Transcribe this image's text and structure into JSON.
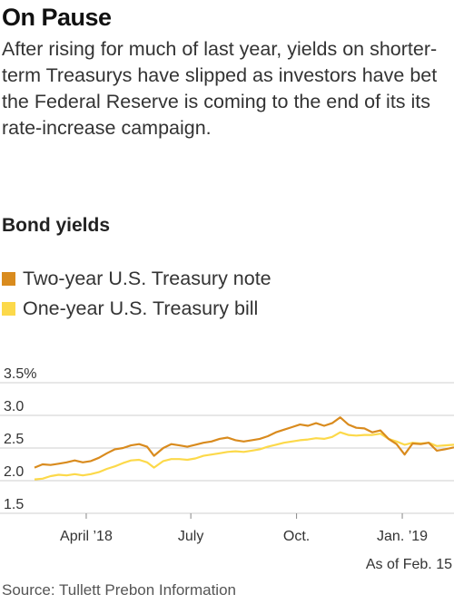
{
  "title": "On Pause",
  "subtitle": "After rising for much of last year, yields on shorter-term Treasurys have slipped as investors have bet the Federal Reserve is coming to the end of its its rate-increase campaign.",
  "chart_label": "Bond yields",
  "note": "As of Feb. 15",
  "source": "Source: Tullett Prebon Information",
  "colors": {
    "two_year": "#d98b1e",
    "one_year": "#fcd94a",
    "grid": "#cfcfcf"
  },
  "chart_data": {
    "type": "line",
    "title": "Bond yields",
    "ylim": [
      1.5,
      3.5
    ],
    "xlim": [
      "2018-02-15",
      "2019-02-15"
    ],
    "y_ticks": [
      {
        "value": 3.5,
        "label": "3.5%"
      },
      {
        "value": 3.0,
        "label": "3.0"
      },
      {
        "value": 2.5,
        "label": "2.5"
      },
      {
        "value": 2.0,
        "label": "2.0"
      },
      {
        "value": 1.5,
        "label": "1.5"
      }
    ],
    "x_ticks": [
      {
        "value": "2018-04-01",
        "label": "April ’18"
      },
      {
        "value": "2018-07-01",
        "label": "July"
      },
      {
        "value": "2018-10-01",
        "label": "Oct."
      },
      {
        "value": "2019-01-01",
        "label": "Jan. ’19"
      }
    ],
    "grid": true,
    "legend_position": "top-left",
    "series": [
      {
        "name": "Two-year U.S. Treasury note",
        "color": "#d98b1e",
        "points": [
          [
            "2018-02-15",
            2.2
          ],
          [
            "2018-02-22",
            2.25
          ],
          [
            "2018-03-01",
            2.24
          ],
          [
            "2018-03-08",
            2.26
          ],
          [
            "2018-03-15",
            2.28
          ],
          [
            "2018-03-22",
            2.31
          ],
          [
            "2018-03-29",
            2.28
          ],
          [
            "2018-04-05",
            2.3
          ],
          [
            "2018-04-12",
            2.35
          ],
          [
            "2018-04-19",
            2.42
          ],
          [
            "2018-04-26",
            2.48
          ],
          [
            "2018-05-03",
            2.5
          ],
          [
            "2018-05-10",
            2.54
          ],
          [
            "2018-05-17",
            2.56
          ],
          [
            "2018-05-24",
            2.52
          ],
          [
            "2018-05-30",
            2.38
          ],
          [
            "2018-06-07",
            2.5
          ],
          [
            "2018-06-14",
            2.56
          ],
          [
            "2018-06-21",
            2.54
          ],
          [
            "2018-06-28",
            2.52
          ],
          [
            "2018-07-05",
            2.55
          ],
          [
            "2018-07-12",
            2.58
          ],
          [
            "2018-07-19",
            2.6
          ],
          [
            "2018-07-26",
            2.64
          ],
          [
            "2018-08-02",
            2.66
          ],
          [
            "2018-08-09",
            2.62
          ],
          [
            "2018-08-16",
            2.6
          ],
          [
            "2018-08-23",
            2.62
          ],
          [
            "2018-08-30",
            2.64
          ],
          [
            "2018-09-06",
            2.68
          ],
          [
            "2018-09-13",
            2.74
          ],
          [
            "2018-09-20",
            2.78
          ],
          [
            "2018-09-27",
            2.82
          ],
          [
            "2018-10-04",
            2.86
          ],
          [
            "2018-10-11",
            2.84
          ],
          [
            "2018-10-18",
            2.88
          ],
          [
            "2018-10-25",
            2.84
          ],
          [
            "2018-11-01",
            2.88
          ],
          [
            "2018-11-08",
            2.97
          ],
          [
            "2018-11-15",
            2.86
          ],
          [
            "2018-11-22",
            2.81
          ],
          [
            "2018-11-29",
            2.8
          ],
          [
            "2018-12-06",
            2.74
          ],
          [
            "2018-12-13",
            2.77
          ],
          [
            "2018-12-20",
            2.64
          ],
          [
            "2018-12-27",
            2.56
          ],
          [
            "2019-01-03",
            2.4
          ],
          [
            "2019-01-10",
            2.57
          ],
          [
            "2019-01-17",
            2.56
          ],
          [
            "2019-01-24",
            2.58
          ],
          [
            "2019-01-31",
            2.46
          ],
          [
            "2019-02-07",
            2.48
          ],
          [
            "2019-02-15",
            2.51
          ]
        ]
      },
      {
        "name": "One-year U.S. Treasury bill",
        "color": "#fcd94a",
        "points": [
          [
            "2018-02-15",
            2.02
          ],
          [
            "2018-02-22",
            2.03
          ],
          [
            "2018-03-01",
            2.07
          ],
          [
            "2018-03-08",
            2.09
          ],
          [
            "2018-03-15",
            2.08
          ],
          [
            "2018-03-22",
            2.1
          ],
          [
            "2018-03-29",
            2.08
          ],
          [
            "2018-04-05",
            2.1
          ],
          [
            "2018-04-12",
            2.13
          ],
          [
            "2018-04-19",
            2.18
          ],
          [
            "2018-04-26",
            2.22
          ],
          [
            "2018-05-03",
            2.27
          ],
          [
            "2018-05-10",
            2.31
          ],
          [
            "2018-05-17",
            2.32
          ],
          [
            "2018-05-24",
            2.28
          ],
          [
            "2018-05-30",
            2.2
          ],
          [
            "2018-06-07",
            2.3
          ],
          [
            "2018-06-14",
            2.33
          ],
          [
            "2018-06-21",
            2.33
          ],
          [
            "2018-06-28",
            2.32
          ],
          [
            "2018-07-05",
            2.34
          ],
          [
            "2018-07-12",
            2.38
          ],
          [
            "2018-07-19",
            2.4
          ],
          [
            "2018-07-26",
            2.42
          ],
          [
            "2018-08-02",
            2.44
          ],
          [
            "2018-08-09",
            2.45
          ],
          [
            "2018-08-16",
            2.44
          ],
          [
            "2018-08-23",
            2.46
          ],
          [
            "2018-08-30",
            2.48
          ],
          [
            "2018-09-06",
            2.52
          ],
          [
            "2018-09-13",
            2.55
          ],
          [
            "2018-09-20",
            2.58
          ],
          [
            "2018-09-27",
            2.6
          ],
          [
            "2018-10-04",
            2.62
          ],
          [
            "2018-10-11",
            2.63
          ],
          [
            "2018-10-18",
            2.65
          ],
          [
            "2018-10-25",
            2.64
          ],
          [
            "2018-11-01",
            2.67
          ],
          [
            "2018-11-08",
            2.74
          ],
          [
            "2018-11-15",
            2.7
          ],
          [
            "2018-11-22",
            2.69
          ],
          [
            "2018-11-29",
            2.7
          ],
          [
            "2018-12-06",
            2.7
          ],
          [
            "2018-12-13",
            2.72
          ],
          [
            "2018-12-20",
            2.64
          ],
          [
            "2018-12-27",
            2.6
          ],
          [
            "2019-01-03",
            2.55
          ],
          [
            "2019-01-10",
            2.58
          ],
          [
            "2019-01-17",
            2.57
          ],
          [
            "2019-01-24",
            2.58
          ],
          [
            "2019-01-31",
            2.53
          ],
          [
            "2019-02-07",
            2.54
          ],
          [
            "2019-02-15",
            2.55
          ]
        ]
      }
    ]
  }
}
